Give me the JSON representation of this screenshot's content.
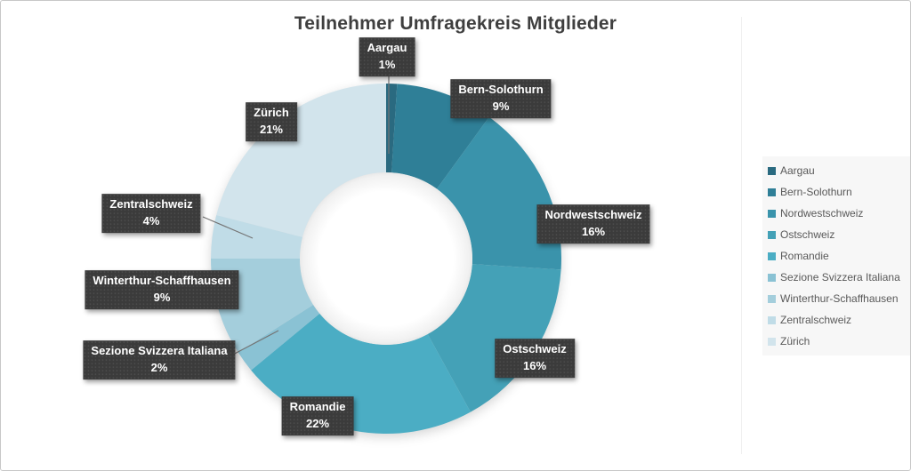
{
  "title": "Teilnehmer Umfragekreis Mitglieder",
  "chart_data": {
    "type": "pie",
    "subtype": "donut",
    "title": "Teilnehmer Umfragekreis Mitglieder",
    "categories": [
      "Aargau",
      "Bern-Solothurn",
      "Nordwestschweiz",
      "Ostschweiz",
      "Romandie",
      "Sezione Svizzera Italiana",
      "Winterthur-Schaffhausen",
      "Zentralschweiz",
      "Zürich"
    ],
    "values": [
      1,
      9,
      16,
      16,
      22,
      2,
      9,
      4,
      21
    ],
    "value_labels": [
      "1%",
      "9%",
      "16%",
      "16%",
      "22%",
      "2%",
      "9%",
      "4%",
      "21%"
    ],
    "unit": "percent",
    "colors": [
      "#2a6a80",
      "#2f7f97",
      "#3a93ab",
      "#44a1b7",
      "#4badc4",
      "#8ac2d4",
      "#a4cedc",
      "#c0dce7",
      "#d2e4ec"
    ],
    "start_angle_deg": 0,
    "direction": "clockwise",
    "donut_hole_ratio": 0.49,
    "legend_position": "right",
    "legend_entries": [
      "Aargau",
      "Bern-Solothurn",
      "Nordwestschweiz",
      "Ostschweiz",
      "Romandie",
      "Sezione Svizzera Italiana",
      "Winterthur-Schaffhausen",
      "Zentralschweiz",
      "Zürich"
    ]
  },
  "styles": {
    "title_color": "#3f3f3f",
    "label_box_bg": "#3b3b3b",
    "label_text_color": "#ffffff",
    "leader_line_color": "#757575",
    "legend_text_color": "#595959",
    "legend_bg": "#f7f7f7",
    "canvas_border": "#c8c8c8"
  }
}
